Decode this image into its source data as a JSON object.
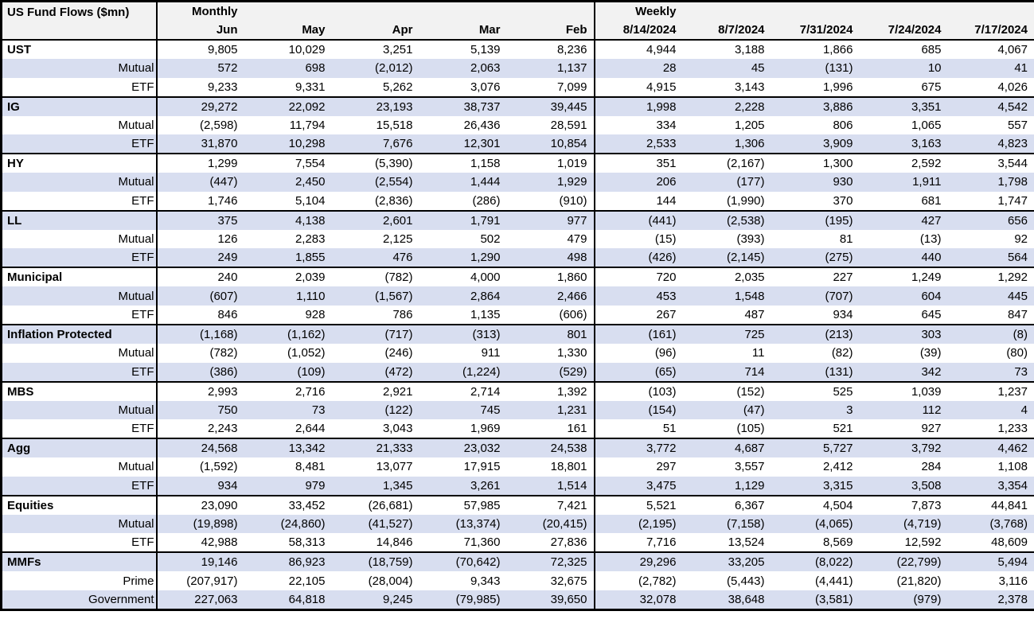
{
  "table": {
    "title": "US Fund Flows ($mn)",
    "colors": {
      "row_alt": "#D8DEF0",
      "header_bg": "#F2F2F2",
      "border": "#000000"
    },
    "sections": [
      {
        "label": "Monthly",
        "columns": [
          "Jun",
          "May",
          "Apr",
          "Mar",
          "Feb"
        ]
      },
      {
        "label": "Weekly",
        "columns": [
          "8/14/2024",
          "8/7/2024",
          "7/31/2024",
          "7/24/2024",
          "7/17/2024"
        ]
      }
    ],
    "groups": [
      {
        "name": "UST",
        "monthly": [
          "9,805",
          "10,029",
          "3,251",
          "5,139",
          "8,236"
        ],
        "weekly": [
          "4,944",
          "3,188",
          "1,866",
          "685",
          "4,067"
        ],
        "subrows": [
          {
            "label": "Mutual",
            "monthly": [
              "572",
              "698",
              "(2,012)",
              "2,063",
              "1,137"
            ],
            "weekly": [
              "28",
              "45",
              "(131)",
              "10",
              "41"
            ]
          },
          {
            "label": "ETF",
            "monthly": [
              "9,233",
              "9,331",
              "5,262",
              "3,076",
              "7,099"
            ],
            "weekly": [
              "4,915",
              "3,143",
              "1,996",
              "675",
              "4,026"
            ]
          }
        ]
      },
      {
        "name": "IG",
        "monthly": [
          "29,272",
          "22,092",
          "23,193",
          "38,737",
          "39,445"
        ],
        "weekly": [
          "1,998",
          "2,228",
          "3,886",
          "3,351",
          "4,542"
        ],
        "subrows": [
          {
            "label": "Mutual",
            "monthly": [
              "(2,598)",
              "11,794",
              "15,518",
              "26,436",
              "28,591"
            ],
            "weekly": [
              "334",
              "1,205",
              "806",
              "1,065",
              "557"
            ]
          },
          {
            "label": "ETF",
            "monthly": [
              "31,870",
              "10,298",
              "7,676",
              "12,301",
              "10,854"
            ],
            "weekly": [
              "2,533",
              "1,306",
              "3,909",
              "3,163",
              "4,823"
            ]
          }
        ]
      },
      {
        "name": "HY",
        "monthly": [
          "1,299",
          "7,554",
          "(5,390)",
          "1,158",
          "1,019"
        ],
        "weekly": [
          "351",
          "(2,167)",
          "1,300",
          "2,592",
          "3,544"
        ],
        "subrows": [
          {
            "label": "Mutual",
            "monthly": [
              "(447)",
              "2,450",
              "(2,554)",
              "1,444",
              "1,929"
            ],
            "weekly": [
              "206",
              "(177)",
              "930",
              "1,911",
              "1,798"
            ]
          },
          {
            "label": "ETF",
            "monthly": [
              "1,746",
              "5,104",
              "(2,836)",
              "(286)",
              "(910)"
            ],
            "weekly": [
              "144",
              "(1,990)",
              "370",
              "681",
              "1,747"
            ]
          }
        ]
      },
      {
        "name": "LL",
        "monthly": [
          "375",
          "4,138",
          "2,601",
          "1,791",
          "977"
        ],
        "weekly": [
          "(441)",
          "(2,538)",
          "(195)",
          "427",
          "656"
        ],
        "subrows": [
          {
            "label": "Mutual",
            "monthly": [
              "126",
              "2,283",
              "2,125",
              "502",
              "479"
            ],
            "weekly": [
              "(15)",
              "(393)",
              "81",
              "(13)",
              "92"
            ]
          },
          {
            "label": "ETF",
            "monthly": [
              "249",
              "1,855",
              "476",
              "1,290",
              "498"
            ],
            "weekly": [
              "(426)",
              "(2,145)",
              "(275)",
              "440",
              "564"
            ]
          }
        ]
      },
      {
        "name": "Municipal",
        "monthly": [
          "240",
          "2,039",
          "(782)",
          "4,000",
          "1,860"
        ],
        "weekly": [
          "720",
          "2,035",
          "227",
          "1,249",
          "1,292"
        ],
        "subrows": [
          {
            "label": "Mutual",
            "monthly": [
              "(607)",
              "1,110",
              "(1,567)",
              "2,864",
              "2,466"
            ],
            "weekly": [
              "453",
              "1,548",
              "(707)",
              "604",
              "445"
            ]
          },
          {
            "label": "ETF",
            "monthly": [
              "846",
              "928",
              "786",
              "1,135",
              "(606)"
            ],
            "weekly": [
              "267",
              "487",
              "934",
              "645",
              "847"
            ]
          }
        ]
      },
      {
        "name": "Inflation Protected",
        "monthly": [
          "(1,168)",
          "(1,162)",
          "(717)",
          "(313)",
          "801"
        ],
        "weekly": [
          "(161)",
          "725",
          "(213)",
          "303",
          "(8)"
        ],
        "subrows": [
          {
            "label": "Mutual",
            "monthly": [
              "(782)",
              "(1,052)",
              "(246)",
              "911",
              "1,330"
            ],
            "weekly": [
              "(96)",
              "11",
              "(82)",
              "(39)",
              "(80)"
            ]
          },
          {
            "label": "ETF",
            "monthly": [
              "(386)",
              "(109)",
              "(472)",
              "(1,224)",
              "(529)"
            ],
            "weekly": [
              "(65)",
              "714",
              "(131)",
              "342",
              "73"
            ]
          }
        ]
      },
      {
        "name": "MBS",
        "monthly": [
          "2,993",
          "2,716",
          "2,921",
          "2,714",
          "1,392"
        ],
        "weekly": [
          "(103)",
          "(152)",
          "525",
          "1,039",
          "1,237"
        ],
        "subrows": [
          {
            "label": "Mutual",
            "monthly": [
              "750",
              "73",
              "(122)",
              "745",
              "1,231"
            ],
            "weekly": [
              "(154)",
              "(47)",
              "3",
              "112",
              "4"
            ]
          },
          {
            "label": "ETF",
            "monthly": [
              "2,243",
              "2,644",
              "3,043",
              "1,969",
              "161"
            ],
            "weekly": [
              "51",
              "(105)",
              "521",
              "927",
              "1,233"
            ]
          }
        ]
      },
      {
        "name": "Agg",
        "monthly": [
          "24,568",
          "13,342",
          "21,333",
          "23,032",
          "24,538"
        ],
        "weekly": [
          "3,772",
          "4,687",
          "5,727",
          "3,792",
          "4,462"
        ],
        "subrows": [
          {
            "label": "Mutual",
            "monthly": [
              "(1,592)",
              "8,481",
              "13,077",
              "17,915",
              "18,801"
            ],
            "weekly": [
              "297",
              "3,557",
              "2,412",
              "284",
              "1,108"
            ]
          },
          {
            "label": "ETF",
            "monthly": [
              "934",
              "979",
              "1,345",
              "3,261",
              "1,514"
            ],
            "weekly": [
              "3,475",
              "1,129",
              "3,315",
              "3,508",
              "3,354"
            ]
          }
        ]
      },
      {
        "name": "Equities",
        "monthly": [
          "23,090",
          "33,452",
          "(26,681)",
          "57,985",
          "7,421"
        ],
        "weekly": [
          "5,521",
          "6,367",
          "4,504",
          "7,873",
          "44,841"
        ],
        "subrows": [
          {
            "label": "Mutual",
            "monthly": [
              "(19,898)",
              "(24,860)",
              "(41,527)",
              "(13,374)",
              "(20,415)"
            ],
            "weekly": [
              "(2,195)",
              "(7,158)",
              "(4,065)",
              "(4,719)",
              "(3,768)"
            ]
          },
          {
            "label": "ETF",
            "monthly": [
              "42,988",
              "58,313",
              "14,846",
              "71,360",
              "27,836"
            ],
            "weekly": [
              "7,716",
              "13,524",
              "8,569",
              "12,592",
              "48,609"
            ]
          }
        ]
      },
      {
        "name": "MMFs",
        "monthly": [
          "19,146",
          "86,923",
          "(18,759)",
          "(70,642)",
          "72,325"
        ],
        "weekly": [
          "29,296",
          "33,205",
          "(8,022)",
          "(22,799)",
          "5,494"
        ],
        "subrows": [
          {
            "label": "Prime",
            "monthly": [
              "(207,917)",
              "22,105",
              "(28,004)",
              "9,343",
              "32,675"
            ],
            "weekly": [
              "(2,782)",
              "(5,443)",
              "(4,441)",
              "(21,820)",
              "3,116"
            ]
          },
          {
            "label": "Government",
            "monthly": [
              "227,063",
              "64,818",
              "9,245",
              "(79,985)",
              "39,650"
            ],
            "weekly": [
              "32,078",
              "38,648",
              "(3,581)",
              "(979)",
              "2,378"
            ]
          }
        ]
      }
    ]
  }
}
